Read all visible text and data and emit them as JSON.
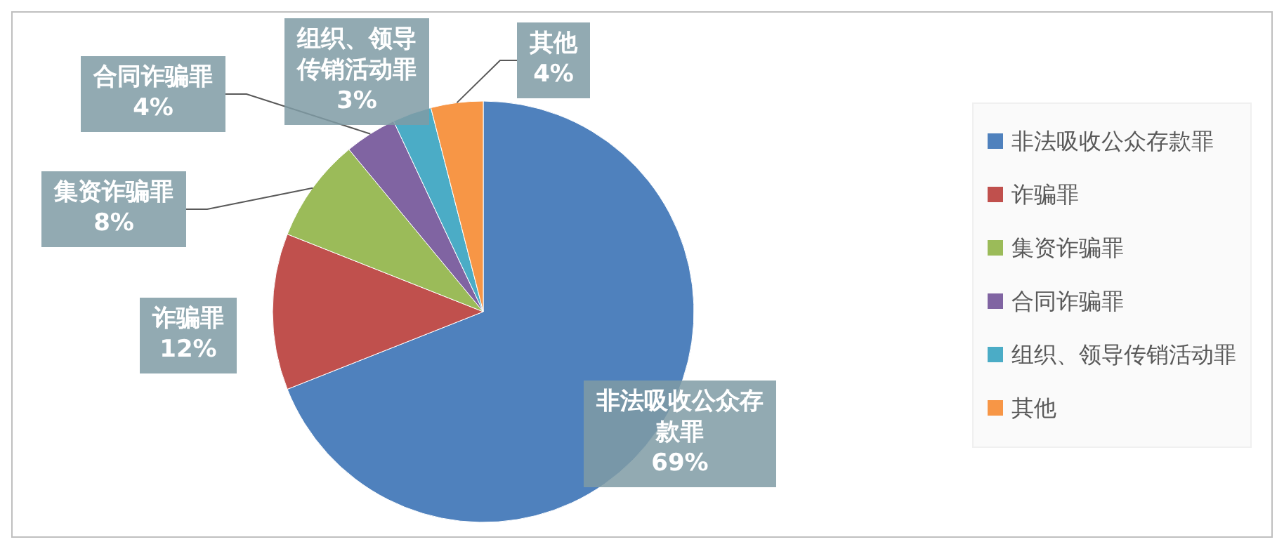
{
  "chart_data": {
    "type": "pie",
    "categories": [
      "非法吸收公众存款罪",
      "诈骗罪",
      "集资诈骗罪",
      "合同诈骗罪",
      "组织、领导传销活动罪",
      "其他"
    ],
    "values": [
      69,
      12,
      8,
      4,
      3,
      4
    ],
    "value_labels": [
      "69%",
      "12%",
      "8%",
      "4%",
      "3%",
      "4%"
    ],
    "colors": [
      "#4f81bd",
      "#c0504d",
      "#9bbb59",
      "#8064a2",
      "#4bacc6",
      "#f79646"
    ],
    "legend": "right"
  }
}
